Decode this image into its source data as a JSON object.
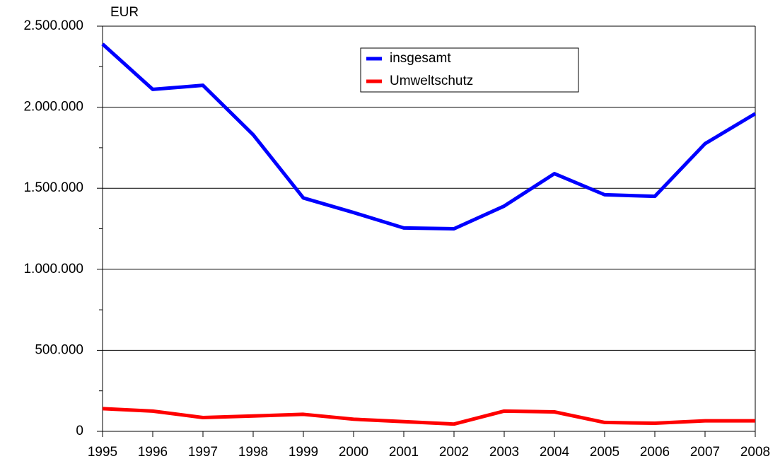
{
  "chart_data": {
    "type": "line",
    "y_unit_label": "EUR",
    "x": [
      1995,
      1996,
      1997,
      1998,
      1999,
      2000,
      2001,
      2002,
      2003,
      2004,
      2005,
      2006,
      2007,
      2008
    ],
    "xlim": [
      1995,
      2008
    ],
    "xticks": [
      1995,
      1996,
      1997,
      1998,
      1999,
      2000,
      2001,
      2002,
      2003,
      2004,
      2005,
      2006,
      2007,
      2008
    ],
    "ylim": [
      0,
      2500000
    ],
    "yticks": [
      0,
      {
        "value": 500000,
        "label": "500.000"
      },
      {
        "value": 1000000,
        "label": "1.000.000"
      },
      {
        "value": 1500000,
        "label": "1.500.000"
      },
      {
        "value": 2000000,
        "label": "2.000.000"
      },
      {
        "value": 2500000,
        "label": "2.500.000"
      }
    ],
    "yminorticks": [
      250000,
      750000,
      1250000,
      1750000,
      2250000
    ],
    "grid": true,
    "legend": "top-center",
    "series": [
      {
        "name": "insgesamt",
        "color": "#0000ff",
        "values": [
          2390000,
          2110000,
          2135000,
          1830000,
          1440000,
          1350000,
          1255000,
          1250000,
          1390000,
          1590000,
          1460000,
          1450000,
          1775000,
          1960000
        ]
      },
      {
        "name": "Umweltschutz",
        "color": "#ff0000",
        "values": [
          140000,
          125000,
          85000,
          95000,
          105000,
          75000,
          60000,
          45000,
          125000,
          120000,
          55000,
          50000,
          65000,
          65000
        ]
      }
    ]
  }
}
